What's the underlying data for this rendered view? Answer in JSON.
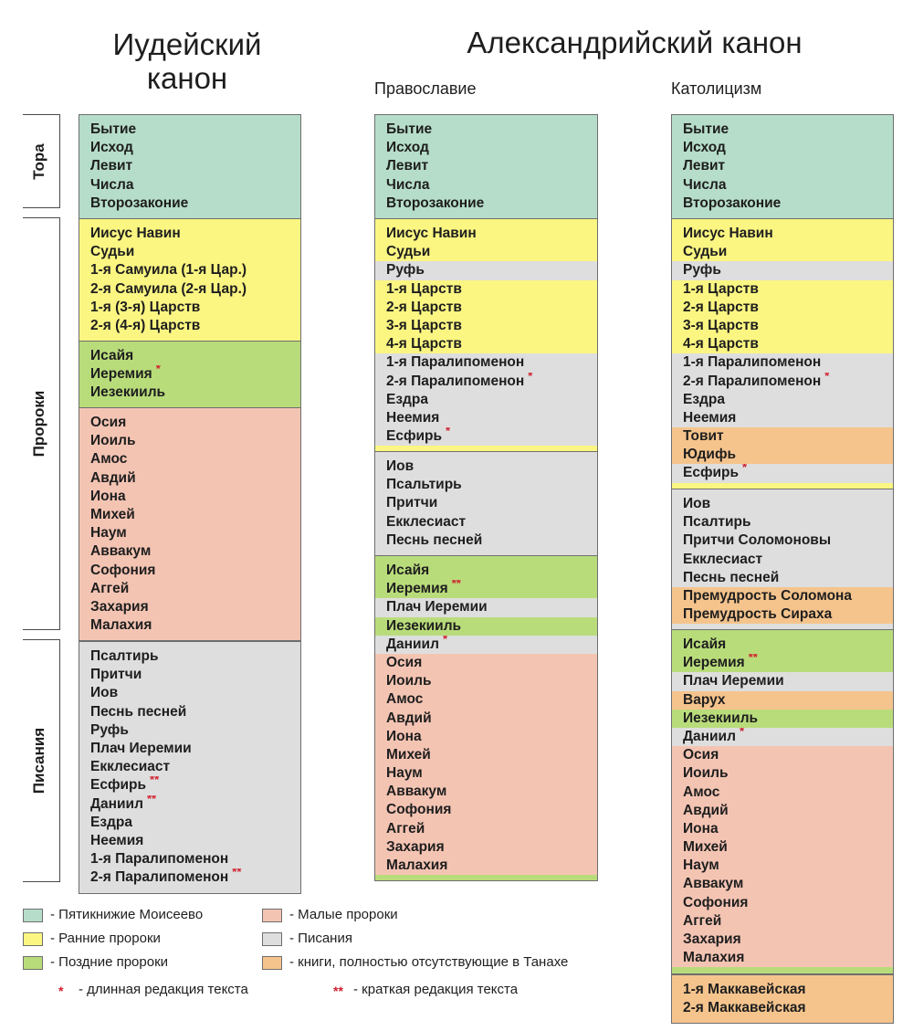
{
  "headers": {
    "judaic": [
      "Иудейский",
      "канон"
    ],
    "alexandrian": "Александрийский канон",
    "orthodoxy": "Православие",
    "catholicism": "Католицизм"
  },
  "sections": {
    "tora": "Тора",
    "prophets": "Пророки",
    "writings": "Писания"
  },
  "columns": {
    "judaic": [
      {
        "color": "#b6ddc9",
        "rows": [
          {
            "text": "Бытие"
          },
          {
            "text": "Исход"
          },
          {
            "text": "Левит"
          },
          {
            "text": "Числа"
          },
          {
            "text": "Второзаконие"
          }
        ]
      },
      {
        "color": "#fbf682",
        "rows": [
          {
            "text": "Иисус Навин"
          },
          {
            "text": "Судьи"
          },
          {
            "text": "1-я Самуила (1-я Цар.)"
          },
          {
            "text": "2-я Самуила (2-я Цар.)"
          },
          {
            "text": "1-я (3-я) Царств"
          },
          {
            "text": "2-я (4-я) Царств"
          }
        ]
      },
      {
        "color": "#b9dc7b",
        "rows": [
          {
            "text": "Исайя"
          },
          {
            "text": "Иеремия",
            "mark": "*"
          },
          {
            "text": "Иезекииль"
          }
        ]
      },
      {
        "color": "#f4c4b3",
        "rows": [
          {
            "text": "Осия"
          },
          {
            "text": "Иоиль"
          },
          {
            "text": "Амос"
          },
          {
            "text": "Авдий"
          },
          {
            "text": "Иона"
          },
          {
            "text": "Михей"
          },
          {
            "text": "Наум"
          },
          {
            "text": "Аввакум"
          },
          {
            "text": "Софония"
          },
          {
            "text": "Аггей"
          },
          {
            "text": "Захария"
          },
          {
            "text": "Малахия"
          }
        ]
      },
      {
        "color": "#dedede",
        "rows": [
          {
            "text": "Псалтирь"
          },
          {
            "text": "Притчи"
          },
          {
            "text": "Иов"
          },
          {
            "text": "Песнь песней"
          },
          {
            "text": "Руфь"
          },
          {
            "text": "Плач Иеремии"
          },
          {
            "text": "Екклесиаст"
          },
          {
            "text": "Есфирь",
            "mark": "**"
          },
          {
            "text": "Даниил",
            "mark": "**"
          },
          {
            "text": "Ездра"
          },
          {
            "text": "Неемия"
          },
          {
            "text": "1-я Паралипоменон"
          },
          {
            "text": "2-я Паралипоменон",
            "mark": "**"
          }
        ]
      }
    ],
    "orthodox": [
      {
        "color": "#b6ddc9",
        "rows": [
          {
            "text": "Бытие"
          },
          {
            "text": "Исход"
          },
          {
            "text": "Левит"
          },
          {
            "text": "Числа"
          },
          {
            "text": "Второзаконие"
          }
        ]
      },
      {
        "color": "#fbf682",
        "rows": [
          {
            "text": "Иисус Навин"
          },
          {
            "text": "Судьи"
          },
          {
            "text": "Руфь",
            "color": "#dedede"
          },
          {
            "text": "1-я Царств"
          },
          {
            "text": "2-я Царств"
          },
          {
            "text": "3-я Царств"
          },
          {
            "text": "4-я Царств"
          },
          {
            "text": "1-я Паралипоменон",
            "color": "#dedede"
          },
          {
            "text": "2-я Паралипоменон",
            "mark": "*",
            "color": "#dedede"
          },
          {
            "text": "Ездра",
            "color": "#dedede"
          },
          {
            "text": "Неемия",
            "color": "#dedede"
          },
          {
            "text": "Есфирь",
            "mark": "*",
            "color": "#dedede"
          }
        ]
      },
      {
        "color": "#dedede",
        "rows": [
          {
            "text": "Иов"
          },
          {
            "text": "Псальтирь"
          },
          {
            "text": "Притчи"
          },
          {
            "text": "Екклесиаст"
          },
          {
            "text": "Песнь песней"
          }
        ]
      },
      {
        "color": "#b9dc7b",
        "rows": [
          {
            "text": "Исайя"
          },
          {
            "text": "Иеремия",
            "mark": "**"
          },
          {
            "text": "Плач Иеремии",
            "color": "#dedede"
          },
          {
            "text": "Иезекииль"
          },
          {
            "text": "Даниил",
            "mark": "*",
            "color": "#dedede"
          },
          {
            "text": "Осия",
            "color": "#f4c4b3"
          },
          {
            "text": "Иоиль",
            "color": "#f4c4b3"
          },
          {
            "text": "Амос",
            "color": "#f4c4b3"
          },
          {
            "text": "Авдий",
            "color": "#f4c4b3"
          },
          {
            "text": "Иона",
            "color": "#f4c4b3"
          },
          {
            "text": "Михей",
            "color": "#f4c4b3"
          },
          {
            "text": "Наум",
            "color": "#f4c4b3"
          },
          {
            "text": "Аввакум",
            "color": "#f4c4b3"
          },
          {
            "text": "Софония",
            "color": "#f4c4b3"
          },
          {
            "text": "Аггей",
            "color": "#f4c4b3"
          },
          {
            "text": "Захария",
            "color": "#f4c4b3"
          },
          {
            "text": "Малахия",
            "color": "#f4c4b3"
          }
        ]
      }
    ],
    "catholic": [
      {
        "color": "#b6ddc9",
        "rows": [
          {
            "text": "Бытие"
          },
          {
            "text": "Исход"
          },
          {
            "text": "Левит"
          },
          {
            "text": "Числа"
          },
          {
            "text": "Второзаконие"
          }
        ]
      },
      {
        "color": "#fbf682",
        "rows": [
          {
            "text": "Иисус Навин"
          },
          {
            "text": "Судьи"
          },
          {
            "text": "Руфь",
            "color": "#dedede"
          },
          {
            "text": "1-я Царств"
          },
          {
            "text": "2-я Царств"
          },
          {
            "text": "3-я Царств"
          },
          {
            "text": "4-я Царств"
          },
          {
            "text": "1-я Паралипоменон",
            "color": "#dedede"
          },
          {
            "text": "2-я Паралипоменон",
            "mark": "*",
            "color": "#dedede"
          },
          {
            "text": "Ездра",
            "color": "#dedede"
          },
          {
            "text": "Неемия",
            "color": "#dedede"
          },
          {
            "text": "Товит",
            "color": "#f5c48d"
          },
          {
            "text": "Юдифь",
            "color": "#f5c48d"
          },
          {
            "text": "Есфирь",
            "mark": "*",
            "color": "#dedede"
          }
        ]
      },
      {
        "color": "#dedede",
        "rows": [
          {
            "text": "Иов"
          },
          {
            "text": "Псалтирь"
          },
          {
            "text": "Притчи Соломоновы"
          },
          {
            "text": "Екклесиаст"
          },
          {
            "text": "Песнь песней"
          },
          {
            "text": "Премудрость Соломона",
            "color": "#f5c48d"
          },
          {
            "text": "Премудрость Сираха",
            "color": "#f5c48d"
          }
        ]
      },
      {
        "color": "#b9dc7b",
        "rows": [
          {
            "text": "Исайя"
          },
          {
            "text": "Иеремия",
            "mark": "**"
          },
          {
            "text": "Плач Иеремии",
            "color": "#dedede"
          },
          {
            "text": "Варух",
            "color": "#f5c48d"
          },
          {
            "text": "Иезекииль"
          },
          {
            "text": "Даниил",
            "mark": "*",
            "color": "#dedede"
          },
          {
            "text": "Осия",
            "color": "#f4c4b3"
          },
          {
            "text": "Иоиль",
            "color": "#f4c4b3"
          },
          {
            "text": "Амос",
            "color": "#f4c4b3"
          },
          {
            "text": "Авдий",
            "color": "#f4c4b3"
          },
          {
            "text": "Иона",
            "color": "#f4c4b3"
          },
          {
            "text": "Михей",
            "color": "#f4c4b3"
          },
          {
            "text": "Наум",
            "color": "#f4c4b3"
          },
          {
            "text": "Аввакум",
            "color": "#f4c4b3"
          },
          {
            "text": "Софония",
            "color": "#f4c4b3"
          },
          {
            "text": "Аггей",
            "color": "#f4c4b3"
          },
          {
            "text": "Захария",
            "color": "#f4c4b3"
          },
          {
            "text": "Малахия",
            "color": "#f4c4b3"
          }
        ]
      },
      {
        "color": "#f5c48d",
        "rows": [
          {
            "text": "1-я Маккавейская"
          },
          {
            "text": "2-я Маккавейская"
          }
        ]
      }
    ]
  },
  "legend": {
    "items": [
      {
        "color": "#b6ddc9",
        "label": "- Пятикнижие Моисеево"
      },
      {
        "color": "#fbf682",
        "label": "- Ранние пророки"
      },
      {
        "color": "#b9dc7b",
        "label": "- Поздние пророки"
      },
      {
        "color": "#f4c4b3",
        "label": "- Малые пророки"
      },
      {
        "color": "#dedede",
        "label": "- Писания"
      },
      {
        "color": "#f5c48d",
        "label": "- книги, полностью отсутствующие в Танахе"
      }
    ],
    "marks": [
      {
        "mark": "*",
        "label": "- длинная редакция текста"
      },
      {
        "mark": "**",
        "label": "- краткая редакция текста"
      }
    ]
  }
}
